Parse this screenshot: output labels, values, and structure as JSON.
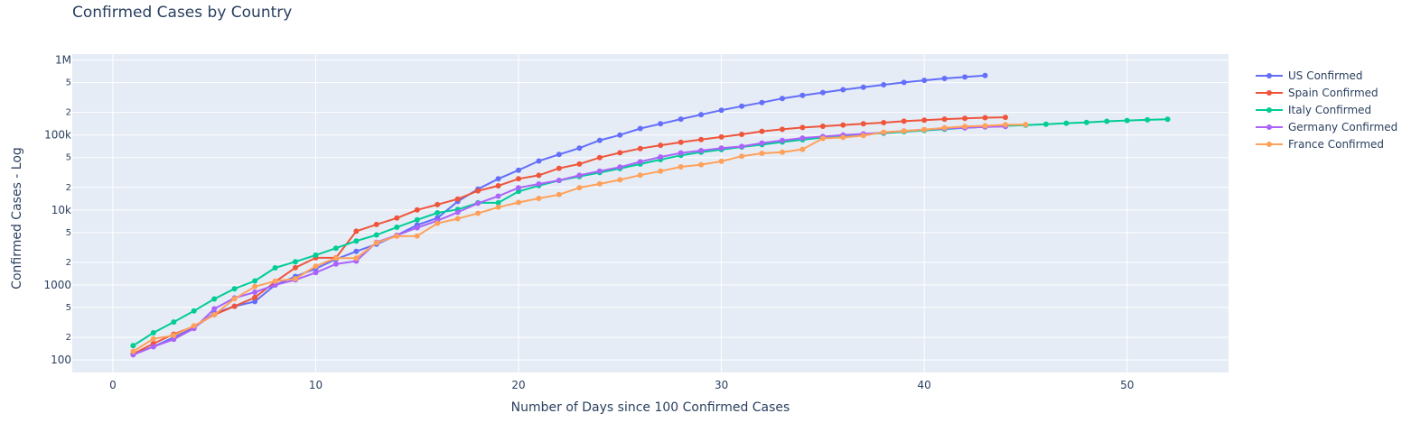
{
  "chart_data": {
    "type": "line",
    "title": "Confirmed Cases by Country",
    "xlabel": "Number of Days since 100 Confirmed Cases",
    "ylabel": "Confirmed Cases - Log",
    "x_range": [
      -2,
      55
    ],
    "x_ticks": [
      0,
      10,
      20,
      30,
      40,
      50
    ],
    "y_scale": "log",
    "y_range": [
      68,
      1200000
    ],
    "y_major_ticks": [
      {
        "value": 100,
        "label": "100"
      },
      {
        "value": 1000,
        "label": "1000"
      },
      {
        "value": 10000,
        "label": "10k"
      },
      {
        "value": 100000,
        "label": "100k"
      },
      {
        "value": 1000000,
        "label": "1M"
      }
    ],
    "y_minor_ticks": [
      {
        "value": 200,
        "label": "2"
      },
      {
        "value": 500,
        "label": "5"
      },
      {
        "value": 2000,
        "label": "2"
      },
      {
        "value": 5000,
        "label": "5"
      },
      {
        "value": 20000,
        "label": "2"
      },
      {
        "value": 50000,
        "label": "5"
      },
      {
        "value": 200000,
        "label": "2"
      },
      {
        "value": 500000,
        "label": "5"
      }
    ],
    "grid": true,
    "legend_position": "right",
    "colors": {
      "plot_bg": "#e5ecf6",
      "grid": "#ffffff",
      "text": "#2a3f5f"
    },
    "series": [
      {
        "name": "US Confirmed",
        "color": "#636efa",
        "x": [
          1,
          2,
          3,
          4,
          5,
          6,
          7,
          8,
          9,
          10,
          11,
          12,
          13,
          14,
          15,
          16,
          17,
          18,
          19,
          20,
          21,
          22,
          23,
          24,
          25,
          26,
          27,
          28,
          29,
          30,
          31,
          32,
          33,
          34,
          35,
          36,
          37,
          38,
          39,
          40,
          41,
          42,
          43
        ],
        "y": [
          120,
          150,
          200,
          270,
          420,
          520,
          600,
          1000,
          1300,
          1650,
          2200,
          2800,
          3500,
          4600,
          6300,
          7800,
          13000,
          19000,
          26000,
          34000,
          45000,
          55000,
          67000,
          85000,
          100000,
          122000,
          141000,
          163000,
          187000,
          214000,
          242000,
          271000,
          307000,
          337000,
          369000,
          402000,
          433000,
          468000,
          503000,
          536000,
          568000,
          593000,
          620000
        ]
      },
      {
        "name": "Spain Confirmed",
        "color": "#ef553b",
        "x": [
          1,
          2,
          3,
          4,
          5,
          6,
          7,
          8,
          9,
          10,
          11,
          12,
          13,
          14,
          15,
          16,
          17,
          18,
          19,
          20,
          21,
          22,
          23,
          24,
          25,
          26,
          27,
          28,
          29,
          30,
          31,
          32,
          33,
          34,
          35,
          36,
          37,
          38,
          39,
          40,
          41,
          42,
          43,
          44
        ],
        "y": [
          120,
          165,
          220,
          280,
          400,
          520,
          680,
          1100,
          1700,
          2300,
          2300,
          5200,
          6400,
          7800,
          10000,
          11800,
          14000,
          18000,
          21000,
          26000,
          29000,
          36000,
          41000,
          50000,
          58000,
          66000,
          73000,
          80000,
          87000,
          94000,
          102000,
          112000,
          119000,
          126000,
          131000,
          136000,
          141000,
          146000,
          153000,
          158000,
          163000,
          167000,
          170000,
          172000
        ]
      },
      {
        "name": "Italy Confirmed",
        "color": "#00cc96",
        "x": [
          1,
          2,
          3,
          4,
          5,
          6,
          7,
          8,
          9,
          10,
          11,
          12,
          13,
          14,
          15,
          16,
          17,
          18,
          19,
          20,
          21,
          22,
          23,
          24,
          25,
          26,
          27,
          28,
          29,
          30,
          31,
          32,
          33,
          34,
          35,
          36,
          37,
          38,
          39,
          40,
          41,
          42,
          43,
          44,
          45,
          46,
          47,
          48,
          49,
          50,
          51,
          52
        ],
        "y": [
          155,
          230,
          320,
          450,
          650,
          890,
          1130,
          1690,
          2040,
          2500,
          3090,
          3860,
          4640,
          5880,
          7380,
          9170,
          10150,
          12460,
          12460,
          17660,
          21160,
          24750,
          28000,
          31500,
          35700,
          41000,
          47000,
          53500,
          59100,
          63900,
          69200,
          74400,
          80500,
          86500,
          92500,
          97700,
          101700,
          105800,
          110600,
          115200,
          119800,
          124600,
          128900,
          132500,
          135600,
          139400,
          143600,
          147600,
          152300,
          156400,
          159500,
          162500
        ]
      },
      {
        "name": "Germany Confirmed",
        "color": "#ab63fa",
        "x": [
          1,
          2,
          3,
          4,
          5,
          6,
          7,
          8,
          9,
          10,
          11,
          12,
          13,
          14,
          15,
          16,
          17,
          18,
          19,
          20,
          21,
          22,
          23,
          24,
          25,
          26,
          27,
          28,
          29,
          30,
          31,
          32,
          33,
          34,
          35,
          36,
          37,
          38,
          39,
          40,
          41,
          42,
          43,
          44
        ],
        "y": [
          117,
          150,
          188,
          262,
          480,
          670,
          800,
          1000,
          1170,
          1460,
          1900,
          2080,
          3700,
          4600,
          5800,
          7200,
          9300,
          12300,
          15300,
          19800,
          22200,
          24800,
          29000,
          33000,
          37300,
          43900,
          50900,
          57700,
          62000,
          66900,
          70400,
          78200,
          84700,
          91100,
          95500,
          100100,
          103400,
          107700,
          113300,
          118200,
          122100,
          124900,
          127900,
          130000
        ]
      },
      {
        "name": "France Confirmed",
        "color": "#ffa15a",
        "x": [
          1,
          2,
          3,
          4,
          5,
          6,
          7,
          8,
          9,
          10,
          11,
          12,
          13,
          14,
          15,
          16,
          17,
          18,
          19,
          20,
          21,
          22,
          23,
          24,
          25,
          26,
          27,
          28,
          29,
          30,
          31,
          32,
          33,
          34,
          35,
          36,
          37,
          38,
          39,
          40,
          41,
          42,
          43,
          44,
          45
        ],
        "y": [
          130,
          191,
          212,
          285,
          400,
          653,
          949,
          1126,
          1209,
          1784,
          2281,
          2281,
          3661,
          4469,
          4499,
          6633,
          7652,
          9043,
          10871,
          12612,
          14282,
          16018,
          19856,
          22304,
          25233,
          29155,
          32964,
          37575,
          40174,
          44550,
          52128,
          56989,
          59105,
          64338,
          89953,
          92839,
          98010,
          109069,
          112950,
          117749,
          124869,
          129654,
          132591,
          136779,
          137877
        ]
      }
    ]
  }
}
